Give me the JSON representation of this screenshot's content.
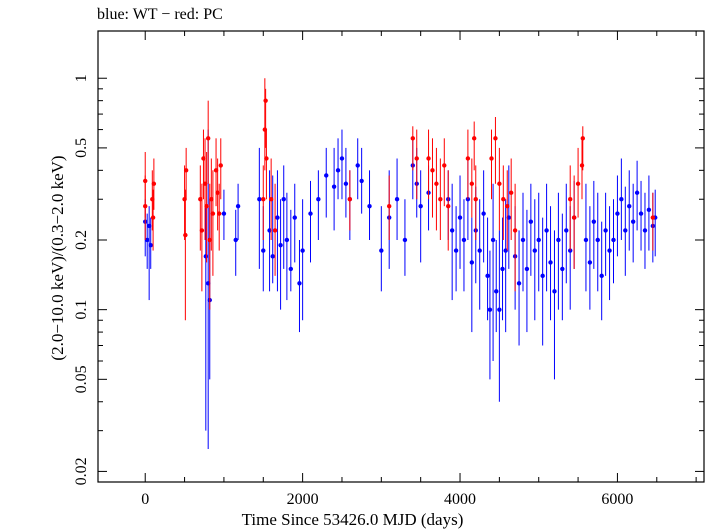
{
  "chart_data": {
    "type": "scatter",
    "title": "blue: WT − red: PC",
    "xlabel": "Time Since 53426.0 MJD (days)",
    "ylabel": "(2.0−10.0 keV)/(0.3−2.0 keV)",
    "xlim": [
      -600,
      7100
    ],
    "ylim": [
      0.018,
      1.6
    ],
    "yscale": "log",
    "xticks": [
      0,
      2000,
      4000,
      6000
    ],
    "yticks": [
      0.02,
      0.05,
      0.1,
      0.2,
      0.5,
      1
    ],
    "grid": false,
    "series": [
      {
        "name": "WT",
        "color": "#0000ff",
        "points": [
          [
            0,
            0.24,
            0.17,
            0.3
          ],
          [
            25,
            0.2,
            0.15,
            0.26
          ],
          [
            50,
            0.23,
            0.11,
            0.28
          ],
          [
            70,
            0.19,
            0.15,
            0.25
          ],
          [
            770,
            0.17,
            0.03,
            0.28
          ],
          [
            800,
            0.13,
            0.025,
            0.6
          ],
          [
            820,
            0.11,
            0.05,
            0.3
          ],
          [
            1000,
            0.26,
            0.2,
            0.33
          ],
          [
            1150,
            0.2,
            0.14,
            0.27
          ],
          [
            1180,
            0.28,
            0.2,
            0.35
          ],
          [
            1450,
            0.3,
            0.15,
            0.5
          ],
          [
            1500,
            0.18,
            0.12,
            0.28
          ],
          [
            1580,
            0.22,
            0.12,
            0.4
          ],
          [
            1620,
            0.17,
            0.13,
            0.38
          ],
          [
            1680,
            0.25,
            0.12,
            0.4
          ],
          [
            1720,
            0.19,
            0.1,
            0.3
          ],
          [
            1760,
            0.3,
            0.15,
            0.42
          ],
          [
            1800,
            0.2,
            0.11,
            0.32
          ],
          [
            1850,
            0.15,
            0.12,
            0.27
          ],
          [
            1900,
            0.25,
            0.16,
            0.35
          ],
          [
            1960,
            0.13,
            0.08,
            0.2
          ],
          [
            2000,
            0.18,
            0.09,
            0.3
          ],
          [
            2100,
            0.26,
            0.16,
            0.36
          ],
          [
            2200,
            0.3,
            0.2,
            0.4
          ],
          [
            2300,
            0.38,
            0.25,
            0.5
          ],
          [
            2400,
            0.34,
            0.22,
            0.5
          ],
          [
            2450,
            0.4,
            0.3,
            0.55
          ],
          [
            2500,
            0.45,
            0.3,
            0.6
          ],
          [
            2550,
            0.35,
            0.25,
            0.5
          ],
          [
            2600,
            0.3,
            0.2,
            0.4
          ],
          [
            2700,
            0.42,
            0.3,
            0.55
          ],
          [
            2750,
            0.36,
            0.26,
            0.5
          ],
          [
            2850,
            0.28,
            0.2,
            0.4
          ],
          [
            3000,
            0.18,
            0.12,
            0.28
          ],
          [
            3100,
            0.25,
            0.15,
            0.4
          ],
          [
            3200,
            0.3,
            0.2,
            0.45
          ],
          [
            3300,
            0.2,
            0.14,
            0.3
          ],
          [
            3400,
            0.42,
            0.3,
            0.55
          ],
          [
            3450,
            0.35,
            0.25,
            0.5
          ],
          [
            3500,
            0.28,
            0.16,
            0.4
          ],
          [
            3600,
            0.32,
            0.22,
            0.42
          ],
          [
            3850,
            0.3,
            0.2,
            0.4
          ],
          [
            3900,
            0.22,
            0.11,
            0.35
          ],
          [
            3950,
            0.18,
            0.12,
            0.28
          ],
          [
            4000,
            0.25,
            0.15,
            0.38
          ],
          [
            4050,
            0.2,
            0.12,
            0.3
          ],
          [
            4100,
            0.3,
            0.2,
            0.45
          ],
          [
            4150,
            0.16,
            0.08,
            0.25
          ],
          [
            4200,
            0.22,
            0.13,
            0.34
          ],
          [
            4250,
            0.18,
            0.1,
            0.3
          ],
          [
            4300,
            0.26,
            0.16,
            0.4
          ],
          [
            4350,
            0.14,
            0.09,
            0.25
          ],
          [
            4380,
            0.1,
            0.05,
            0.18
          ],
          [
            4420,
            0.2,
            0.06,
            0.35
          ],
          [
            4460,
            0.12,
            0.08,
            0.2
          ],
          [
            4500,
            0.1,
            0.04,
            0.22
          ],
          [
            4540,
            0.15,
            0.09,
            0.25
          ],
          [
            4580,
            0.18,
            0.08,
            0.3
          ],
          [
            4620,
            0.25,
            0.15,
            0.42
          ],
          [
            4700,
            0.17,
            0.1,
            0.28
          ],
          [
            4750,
            0.13,
            0.07,
            0.22
          ],
          [
            4800,
            0.2,
            0.12,
            0.32
          ],
          [
            4850,
            0.15,
            0.08,
            0.27
          ],
          [
            4900,
            0.24,
            0.14,
            0.35
          ],
          [
            4950,
            0.18,
            0.09,
            0.3
          ],
          [
            5000,
            0.2,
            0.12,
            0.32
          ],
          [
            5050,
            0.14,
            0.07,
            0.25
          ],
          [
            5100,
            0.22,
            0.12,
            0.35
          ],
          [
            5150,
            0.16,
            0.09,
            0.28
          ],
          [
            5200,
            0.12,
            0.05,
            0.22
          ],
          [
            5250,
            0.2,
            0.1,
            0.32
          ],
          [
            5300,
            0.15,
            0.09,
            0.26
          ],
          [
            5350,
            0.22,
            0.13,
            0.35
          ],
          [
            5400,
            0.18,
            0.1,
            0.28
          ],
          [
            5450,
            0.25,
            0.15,
            0.36
          ],
          [
            5600,
            0.2,
            0.12,
            0.35
          ],
          [
            5650,
            0.16,
            0.1,
            0.28
          ],
          [
            5700,
            0.24,
            0.15,
            0.36
          ],
          [
            5750,
            0.2,
            0.12,
            0.32
          ],
          [
            5800,
            0.14,
            0.09,
            0.24
          ],
          [
            5850,
            0.22,
            0.14,
            0.32
          ],
          [
            5900,
            0.18,
            0.11,
            0.28
          ],
          [
            5950,
            0.2,
            0.13,
            0.3
          ],
          [
            6000,
            0.26,
            0.17,
            0.38
          ],
          [
            6050,
            0.3,
            0.2,
            0.45
          ],
          [
            6100,
            0.22,
            0.14,
            0.34
          ],
          [
            6150,
            0.28,
            0.18,
            0.4
          ],
          [
            6200,
            0.24,
            0.16,
            0.35
          ],
          [
            6250,
            0.32,
            0.22,
            0.44
          ],
          [
            6300,
            0.26,
            0.18,
            0.36
          ],
          [
            6350,
            0.22,
            0.15,
            0.32
          ],
          [
            6400,
            0.27,
            0.18,
            0.38
          ],
          [
            6450,
            0.23,
            0.16,
            0.32
          ],
          [
            6480,
            0.25,
            0.17,
            0.33
          ]
        ]
      },
      {
        "name": "PC",
        "color": "#ff0000",
        "points": [
          [
            0,
            0.28,
            0.2,
            0.38
          ],
          [
            0,
            0.36,
            0.25,
            0.48
          ],
          [
            90,
            0.3,
            0.22,
            0.4
          ],
          [
            100,
            0.25,
            0.18,
            0.33
          ],
          [
            110,
            0.35,
            0.27,
            0.45
          ],
          [
            500,
            0.3,
            0.2,
            0.42
          ],
          [
            510,
            0.21,
            0.09,
            0.33
          ],
          [
            520,
            0.4,
            0.3,
            0.5
          ],
          [
            700,
            0.3,
            0.18,
            0.42
          ],
          [
            720,
            0.22,
            0.12,
            0.35
          ],
          [
            740,
            0.45,
            0.3,
            0.6
          ],
          [
            760,
            0.35,
            0.2,
            0.55
          ],
          [
            780,
            0.28,
            0.16,
            0.48
          ],
          [
            800,
            0.55,
            0.35,
            0.8
          ],
          [
            820,
            0.2,
            0.1,
            0.35
          ],
          [
            840,
            0.3,
            0.18,
            0.45
          ],
          [
            860,
            0.26,
            0.14,
            0.4
          ],
          [
            900,
            0.4,
            0.28,
            0.55
          ],
          [
            920,
            0.32,
            0.22,
            0.45
          ],
          [
            940,
            0.26,
            0.18,
            0.35
          ],
          [
            960,
            0.42,
            0.3,
            0.55
          ],
          [
            1500,
            0.3,
            0.2,
            0.42
          ],
          [
            1520,
            0.6,
            0.4,
            1.0
          ],
          [
            1530,
            0.8,
            0.5,
            0.9
          ],
          [
            1540,
            0.45,
            0.3,
            0.6
          ],
          [
            1600,
            0.3,
            0.2,
            0.45
          ],
          [
            1650,
            0.22,
            0.14,
            0.35
          ],
          [
            2600,
            0.3,
            0.22,
            0.4
          ],
          [
            3100,
            0.28,
            0.2,
            0.38
          ],
          [
            3400,
            0.55,
            0.4,
            0.62
          ],
          [
            3450,
            0.45,
            0.3,
            0.6
          ],
          [
            3600,
            0.45,
            0.3,
            0.6
          ],
          [
            3650,
            0.4,
            0.25,
            0.55
          ],
          [
            3700,
            0.35,
            0.22,
            0.5
          ],
          [
            3750,
            0.3,
            0.2,
            0.45
          ],
          [
            3800,
            0.42,
            0.28,
            0.55
          ],
          [
            3850,
            0.28,
            0.18,
            0.4
          ],
          [
            4100,
            0.45,
            0.3,
            0.6
          ],
          [
            4150,
            0.35,
            0.25,
            0.45
          ],
          [
            4180,
            0.55,
            0.4,
            0.65
          ],
          [
            4200,
            0.3,
            0.2,
            0.42
          ],
          [
            4400,
            0.45,
            0.3,
            0.6
          ],
          [
            4450,
            0.55,
            0.35,
            0.68
          ],
          [
            4500,
            0.35,
            0.22,
            0.5
          ],
          [
            4550,
            0.3,
            0.2,
            0.42
          ],
          [
            4600,
            0.28,
            0.18,
            0.4
          ],
          [
            4650,
            0.32,
            0.2,
            0.45
          ],
          [
            4700,
            0.22,
            0.12,
            0.35
          ],
          [
            5400,
            0.3,
            0.18,
            0.42
          ],
          [
            5450,
            0.25,
            0.15,
            0.38
          ],
          [
            5500,
            0.35,
            0.25,
            0.5
          ],
          [
            5550,
            0.42,
            0.3,
            0.55
          ],
          [
            5560,
            0.55,
            0.4,
            0.62
          ],
          [
            6450,
            0.25,
            0.18,
            0.32
          ]
        ]
      }
    ]
  }
}
